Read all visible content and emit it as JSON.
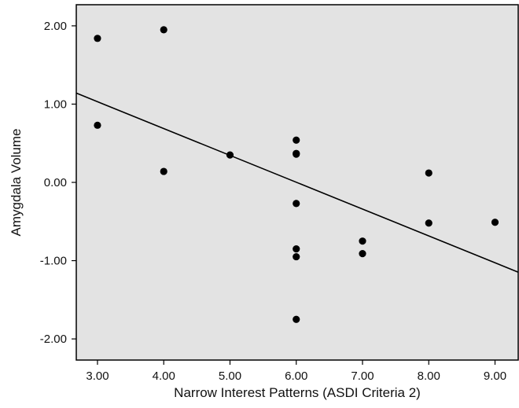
{
  "chart_data": {
    "type": "scatter",
    "title": "",
    "xlabel": "Narrow Interest Patterns (ASDI Criteria 2)",
    "ylabel": "Amygdala Volume",
    "xlim": [
      2.68,
      9.35
    ],
    "ylim": [
      -2.27,
      2.27
    ],
    "xticks": [
      3,
      4,
      5,
      6,
      7,
      8,
      9
    ],
    "xtick_labels": [
      "3.00",
      "4.00",
      "5.00",
      "6.00",
      "7.00",
      "8.00",
      "9.00"
    ],
    "yticks": [
      2,
      1,
      0,
      -1,
      -2
    ],
    "ytick_labels": [
      "2.00",
      "1.00",
      "0.00",
      "-1.00",
      "-2.00"
    ],
    "grid": false,
    "legend": "none",
    "colors": {
      "plot_background": "#e3e3e3",
      "marker": "#000000",
      "line": "#000000",
      "axis": "#000000"
    },
    "points": [
      {
        "x": 3,
        "y": 1.84
      },
      {
        "x": 3,
        "y": 0.73
      },
      {
        "x": 4,
        "y": 1.95
      },
      {
        "x": 4,
        "y": 0.14
      },
      {
        "x": 5,
        "y": 0.35
      },
      {
        "x": 6,
        "y": 0.54
      },
      {
        "x": 6,
        "y": 0.37
      },
      {
        "x": 6,
        "y": 0.36
      },
      {
        "x": 6,
        "y": -0.27
      },
      {
        "x": 6,
        "y": -0.85
      },
      {
        "x": 6,
        "y": -0.95
      },
      {
        "x": 6,
        "y": -1.75
      },
      {
        "x": 7,
        "y": -0.75
      },
      {
        "x": 7,
        "y": -0.91
      },
      {
        "x": 8,
        "y": 0.12
      },
      {
        "x": 8,
        "y": -0.52
      },
      {
        "x": 9,
        "y": -0.51
      }
    ],
    "fit_line": {
      "slope": -0.343,
      "intercept": 2.06
    }
  }
}
